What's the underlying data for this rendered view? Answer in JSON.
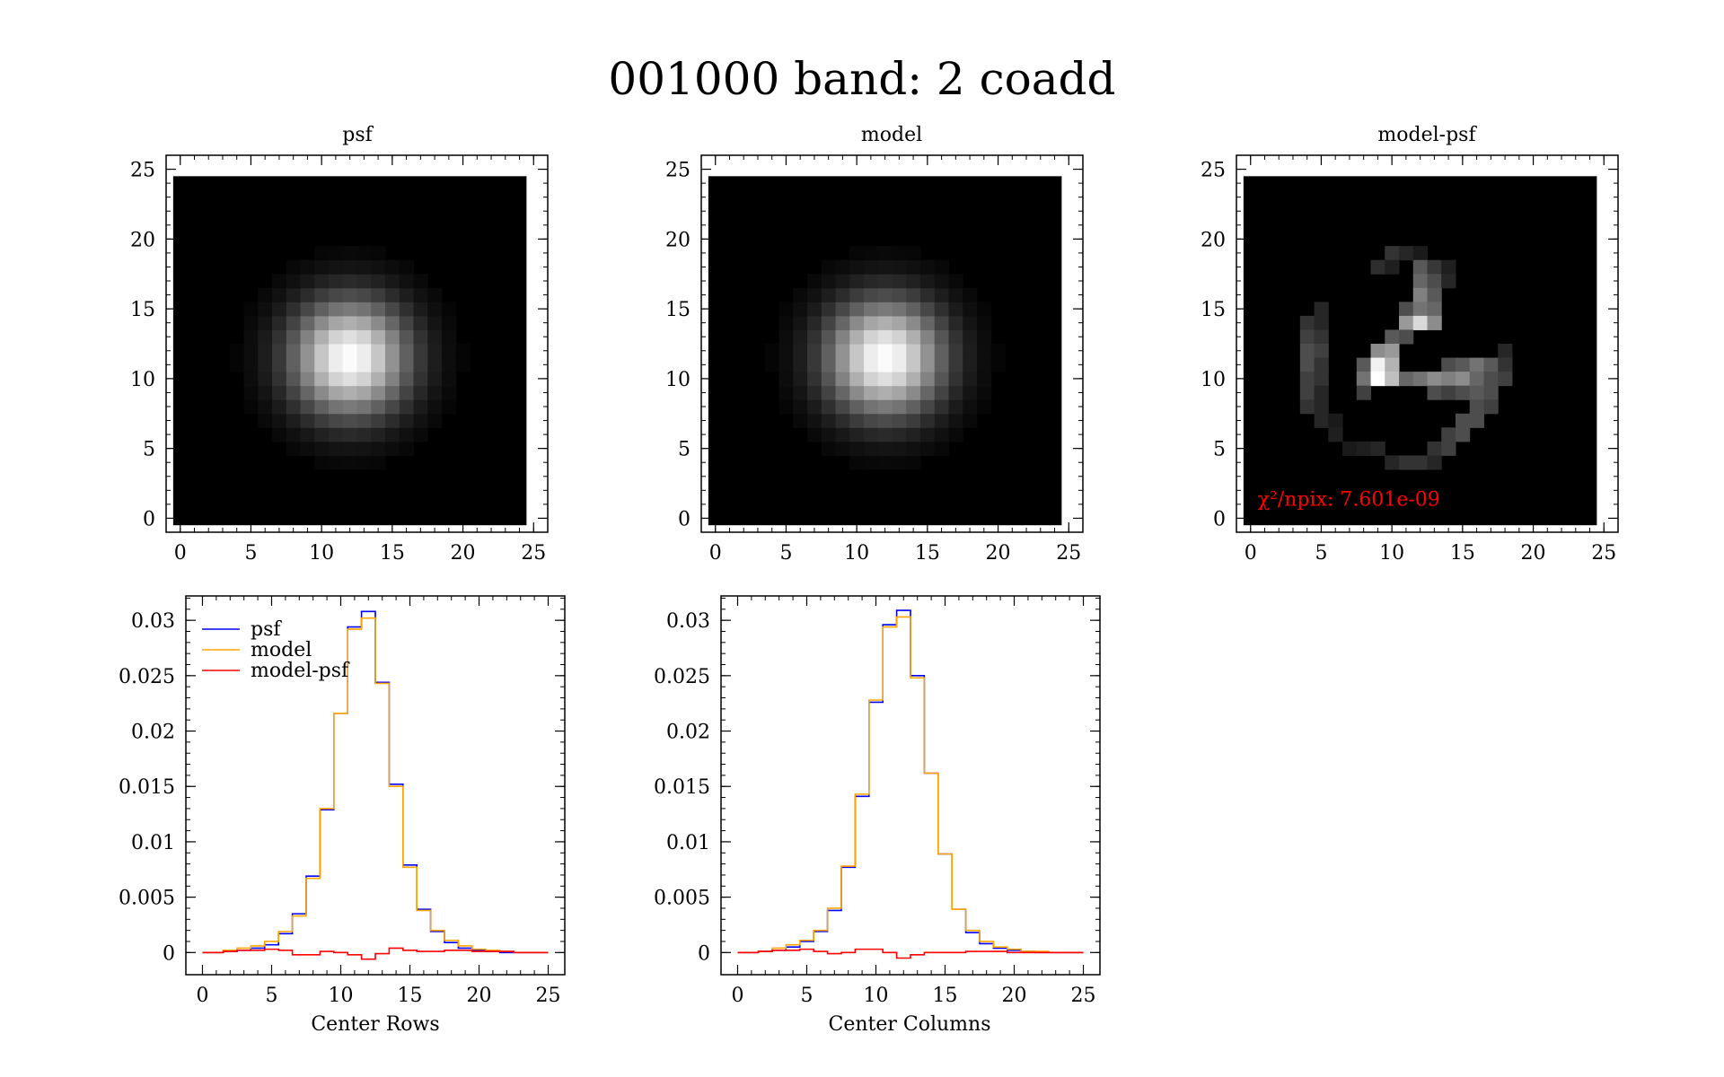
{
  "figure": {
    "title": "001000 band: 2 coadd",
    "colors": {
      "psf": "#0000ff",
      "model": "#ffa500",
      "diff": "#ff0000",
      "annotation": "#ff0000",
      "image_bg": "#000000"
    }
  },
  "chart_data": [
    {
      "type": "heatmap",
      "title": "psf",
      "xlim": [
        -1,
        26
      ],
      "ylim": [
        -1,
        26
      ],
      "xticks": [
        0,
        5,
        10,
        15,
        20,
        25
      ],
      "yticks": [
        0,
        5,
        10,
        15,
        20,
        25
      ],
      "image_extent": [
        -0.5,
        24.5
      ],
      "colormap": "gray",
      "profile": {
        "shape": "gaussian",
        "center_x": 12,
        "center_y": 11.5,
        "sigma": 2.5
      }
    },
    {
      "type": "heatmap",
      "title": "model",
      "xlim": [
        -1,
        26
      ],
      "ylim": [
        -1,
        26
      ],
      "xticks": [
        0,
        5,
        10,
        15,
        20,
        25
      ],
      "yticks": [
        0,
        5,
        10,
        15,
        20,
        25
      ],
      "image_extent": [
        -0.5,
        24.5
      ],
      "colormap": "gray",
      "profile": {
        "shape": "gaussian",
        "center_x": 12,
        "center_y": 11.5,
        "sigma": 2.5
      }
    },
    {
      "type": "heatmap",
      "title": "model-psf",
      "xlim": [
        -1,
        26
      ],
      "ylim": [
        -1,
        26
      ],
      "xticks": [
        0,
        5,
        10,
        15,
        20,
        25
      ],
      "yticks": [
        0,
        5,
        10,
        15,
        20,
        25
      ],
      "image_extent": [
        -0.5,
        24.5
      ],
      "colormap": "gray",
      "annotation": "χ²/npix: 7.601e-09",
      "pixels": [
        [
          10,
          19,
          0.2
        ],
        [
          11,
          19,
          0.15
        ],
        [
          12,
          19,
          0.1
        ],
        [
          9,
          18,
          0.18
        ],
        [
          10,
          18,
          0.12
        ],
        [
          12,
          18,
          0.35
        ],
        [
          13,
          18,
          0.22
        ],
        [
          14,
          18,
          0.12
        ],
        [
          12,
          17,
          0.4
        ],
        [
          13,
          17,
          0.3
        ],
        [
          14,
          17,
          0.15
        ],
        [
          12,
          16,
          0.5
        ],
        [
          13,
          16,
          0.35
        ],
        [
          5,
          15,
          0.15
        ],
        [
          11,
          15,
          0.3
        ],
        [
          12,
          15,
          0.45
        ],
        [
          13,
          15,
          0.4
        ],
        [
          4,
          14,
          0.2
        ],
        [
          5,
          14,
          0.15
        ],
        [
          11,
          14,
          0.6
        ],
        [
          12,
          14,
          0.85
        ],
        [
          13,
          14,
          0.55
        ],
        [
          4,
          13,
          0.25
        ],
        [
          5,
          13,
          0.2
        ],
        [
          10,
          13,
          0.35
        ],
        [
          11,
          13,
          0.3
        ],
        [
          4,
          12,
          0.3
        ],
        [
          5,
          12,
          0.25
        ],
        [
          9,
          12,
          0.55
        ],
        [
          10,
          12,
          0.6
        ],
        [
          18,
          12,
          0.15
        ],
        [
          4,
          11,
          0.3
        ],
        [
          5,
          11,
          0.2
        ],
        [
          8,
          11,
          0.35
        ],
        [
          9,
          11,
          0.95
        ],
        [
          10,
          11,
          0.7
        ],
        [
          14,
          11,
          0.3
        ],
        [
          15,
          11,
          0.35
        ],
        [
          16,
          11,
          0.45
        ],
        [
          17,
          11,
          0.35
        ],
        [
          18,
          11,
          0.2
        ],
        [
          4,
          10,
          0.25
        ],
        [
          5,
          10,
          0.2
        ],
        [
          8,
          10,
          0.45
        ],
        [
          9,
          10,
          1.0
        ],
        [
          10,
          10,
          0.75
        ],
        [
          11,
          10,
          0.4
        ],
        [
          12,
          10,
          0.45
        ],
        [
          13,
          10,
          0.55
        ],
        [
          14,
          10,
          0.5
        ],
        [
          15,
          10,
          0.55
        ],
        [
          16,
          10,
          0.4
        ],
        [
          17,
          10,
          0.3
        ],
        [
          18,
          10,
          0.25
        ],
        [
          4,
          9,
          0.25
        ],
        [
          5,
          9,
          0.15
        ],
        [
          8,
          9,
          0.25
        ],
        [
          13,
          9,
          0.3
        ],
        [
          14,
          9,
          0.25
        ],
        [
          15,
          9,
          0.3
        ],
        [
          16,
          9,
          0.35
        ],
        [
          17,
          9,
          0.3
        ],
        [
          4,
          8,
          0.2
        ],
        [
          5,
          8,
          0.15
        ],
        [
          16,
          8,
          0.3
        ],
        [
          17,
          8,
          0.25
        ],
        [
          5,
          7,
          0.15
        ],
        [
          6,
          7,
          0.1
        ],
        [
          15,
          7,
          0.3
        ],
        [
          16,
          7,
          0.3
        ],
        [
          6,
          6,
          0.12
        ],
        [
          14,
          6,
          0.25
        ],
        [
          15,
          6,
          0.3
        ],
        [
          7,
          5,
          0.1
        ],
        [
          8,
          5,
          0.12
        ],
        [
          9,
          5,
          0.15
        ],
        [
          13,
          5,
          0.2
        ],
        [
          14,
          5,
          0.25
        ],
        [
          10,
          4,
          0.15
        ],
        [
          11,
          4,
          0.2
        ],
        [
          12,
          4,
          0.2
        ],
        [
          13,
          4,
          0.15
        ]
      ]
    },
    {
      "type": "line",
      "step": true,
      "xlabel": "Center Rows",
      "xlim": [
        -1.2,
        26.2
      ],
      "ylim": [
        -0.002,
        0.0322
      ],
      "xticks": [
        0,
        5,
        10,
        15,
        20,
        25
      ],
      "yticks": [
        0,
        0.005,
        0.01,
        0.015,
        0.02,
        0.025,
        0.03
      ],
      "ytick_labels": [
        "0",
        "0.005",
        "0.01",
        "0.015",
        "0.02",
        "0.025",
        "0.03"
      ],
      "legend_position": "top-left",
      "x": [
        0,
        1,
        2,
        3,
        4,
        5,
        6,
        7,
        8,
        9,
        10,
        11,
        12,
        13,
        14,
        15,
        16,
        17,
        18,
        19,
        20,
        21,
        22,
        23,
        24,
        25
      ],
      "series": [
        {
          "name": "psf",
          "values": [
            0,
            0,
            0.0001,
            0.0002,
            0.0004,
            0.0007,
            0.0017,
            0.0035,
            0.0069,
            0.0129,
            0.0216,
            0.0294,
            0.0308,
            0.0244,
            0.0152,
            0.0079,
            0.0039,
            0.0019,
            0.0009,
            0.0004,
            0.0002,
            0.0001,
            0,
            0,
            0,
            0
          ]
        },
        {
          "name": "model",
          "values": [
            0,
            0,
            0.0002,
            0.0004,
            0.0006,
            0.001,
            0.0019,
            0.0033,
            0.0067,
            0.013,
            0.0216,
            0.0292,
            0.0302,
            0.0243,
            0.015,
            0.0077,
            0.0038,
            0.002,
            0.0011,
            0.0006,
            0.0003,
            0.0002,
            0.0001,
            0,
            0,
            0
          ]
        },
        {
          "name": "model-psf",
          "values": [
            0,
            0,
            0.0001,
            0.0002,
            0.0002,
            0.0003,
            0.0002,
            -0.0002,
            -0.0002,
            0.0001,
            0.0,
            -0.0002,
            -0.0006,
            -0.0001,
            0.0004,
            0.0002,
            0.0001,
            0.0001,
            0.0002,
            0.0002,
            0.0001,
            0.0001,
            0.0001,
            0,
            0,
            0
          ]
        }
      ]
    },
    {
      "type": "line",
      "step": true,
      "xlabel": "Center Columns",
      "xlim": [
        -1.2,
        26.2
      ],
      "ylim": [
        -0.002,
        0.0322
      ],
      "xticks": [
        0,
        5,
        10,
        15,
        20,
        25
      ],
      "yticks": [
        0,
        0.005,
        0.01,
        0.015,
        0.02,
        0.025,
        0.03
      ],
      "ytick_labels": [
        "0",
        "0.005",
        "0.01",
        "0.015",
        "0.02",
        "0.025",
        "0.03"
      ],
      "x": [
        0,
        1,
        2,
        3,
        4,
        5,
        6,
        7,
        8,
        9,
        10,
        11,
        12,
        13,
        14,
        15,
        16,
        17,
        18,
        19,
        20,
        21,
        22,
        23,
        24,
        25
      ],
      "series": [
        {
          "name": "psf",
          "values": [
            0,
            0,
            0.0001,
            0.0002,
            0.0005,
            0.001,
            0.0019,
            0.0038,
            0.0077,
            0.0141,
            0.0226,
            0.0296,
            0.0309,
            0.025,
            0.0162,
            0.0089,
            0.0039,
            0.0018,
            0.0008,
            0.0004,
            0.0002,
            0.0001,
            0,
            0,
            0,
            0
          ]
        },
        {
          "name": "model",
          "values": [
            0,
            0,
            0.0001,
            0.0004,
            0.0007,
            0.0011,
            0.002,
            0.004,
            0.0078,
            0.0143,
            0.0228,
            0.0294,
            0.0303,
            0.0248,
            0.0162,
            0.0089,
            0.0039,
            0.002,
            0.001,
            0.0005,
            0.0003,
            0.0001,
            0.0001,
            0,
            0,
            0
          ]
        },
        {
          "name": "model-psf",
          "values": [
            0,
            0,
            0.0001,
            0.0002,
            0.0002,
            0.0003,
            0.0001,
            -0.0001,
            0.0,
            0.0003,
            0.0003,
            0.0,
            -0.0005,
            -0.0002,
            0.0,
            0.0,
            0.0,
            0.0001,
            0.0001,
            0.0001,
            0.0,
            0.0,
            0.0,
            0,
            0,
            0
          ]
        }
      ]
    }
  ]
}
